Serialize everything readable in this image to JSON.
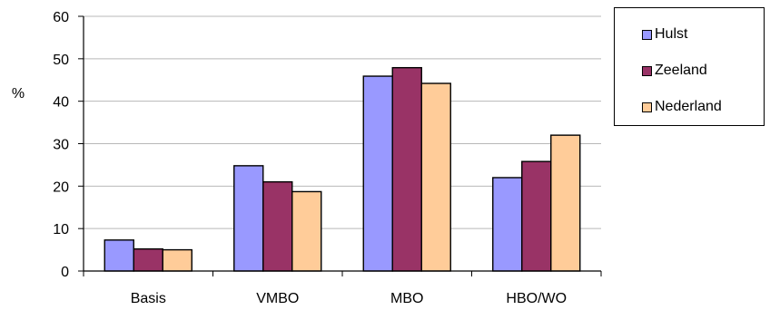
{
  "chart_data": {
    "type": "bar",
    "categories": [
      "Basis",
      "VMBO",
      "MBO",
      "HBO/WO"
    ],
    "series": [
      {
        "name": "Hulst",
        "color": "#9999ff",
        "values": [
          7.3,
          24.8,
          45.9,
          22.0
        ]
      },
      {
        "name": "Zeeland",
        "color": "#993366",
        "values": [
          5.2,
          21.0,
          47.9,
          25.8
        ]
      },
      {
        "name": "Nederland",
        "color": "#ffcc99",
        "values": [
          5.0,
          18.7,
          44.2,
          32.0
        ]
      }
    ],
    "title": "",
    "xlabel": "",
    "ylabel": "%",
    "ylim": [
      0,
      60
    ],
    "yticks": [
      0,
      10,
      20,
      30,
      40,
      50,
      60
    ],
    "grid": true,
    "legend_position": "right"
  }
}
